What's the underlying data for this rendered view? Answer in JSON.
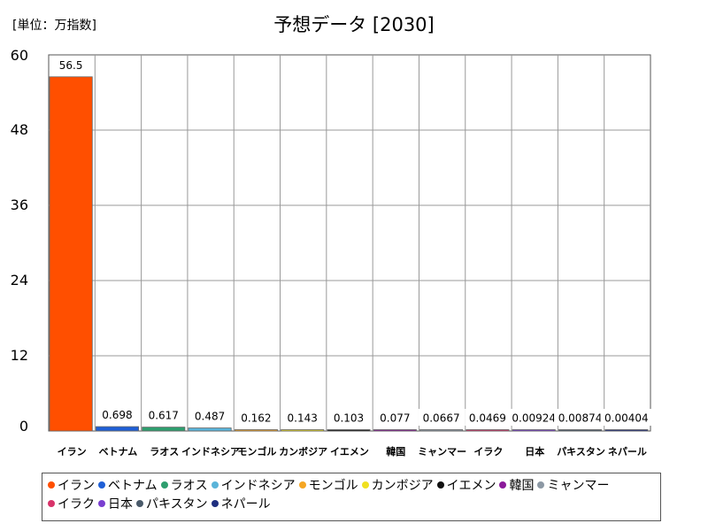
{
  "chart_data": {
    "type": "bar",
    "title": "予想データ [2030]",
    "unit_label": "[単位：万指数]",
    "categories": [
      "イラン",
      "ベトナム",
      "ラオス",
      "インドネシア",
      "モンゴル",
      "カンボジア",
      "イエメン",
      "韓国",
      "ミャンマー",
      "イラク",
      "日本",
      "パキスタン",
      "ネパール"
    ],
    "values": [
      56.5,
      0.698,
      0.617,
      0.487,
      0.162,
      0.143,
      0.103,
      0.077,
      0.0667,
      0.0469,
      0.00924,
      0.00874,
      0.00404
    ],
    "value_labels": [
      "56.5",
      "0.698",
      "0.617",
      "0.487",
      "0.162",
      "0.143",
      "0.103",
      "0.077",
      "0.0667",
      "0.0469",
      "0.00924",
      "0.00874",
      "0.00404"
    ],
    "colors": [
      "#ff4f00",
      "#1f5fd6",
      "#2e9e6e",
      "#5ab4d9",
      "#f5a623",
      "#f0e020",
      "#111111",
      "#8b1a9a",
      "#8c98a4",
      "#d8336a",
      "#7a3fd0",
      "#4a5a6a",
      "#1f2f80"
    ],
    "ylim": [
      0,
      60
    ],
    "yticks": [
      "0",
      "12",
      "24",
      "36",
      "48",
      "60"
    ],
    "grid": true,
    "legend_position": "bottom"
  }
}
